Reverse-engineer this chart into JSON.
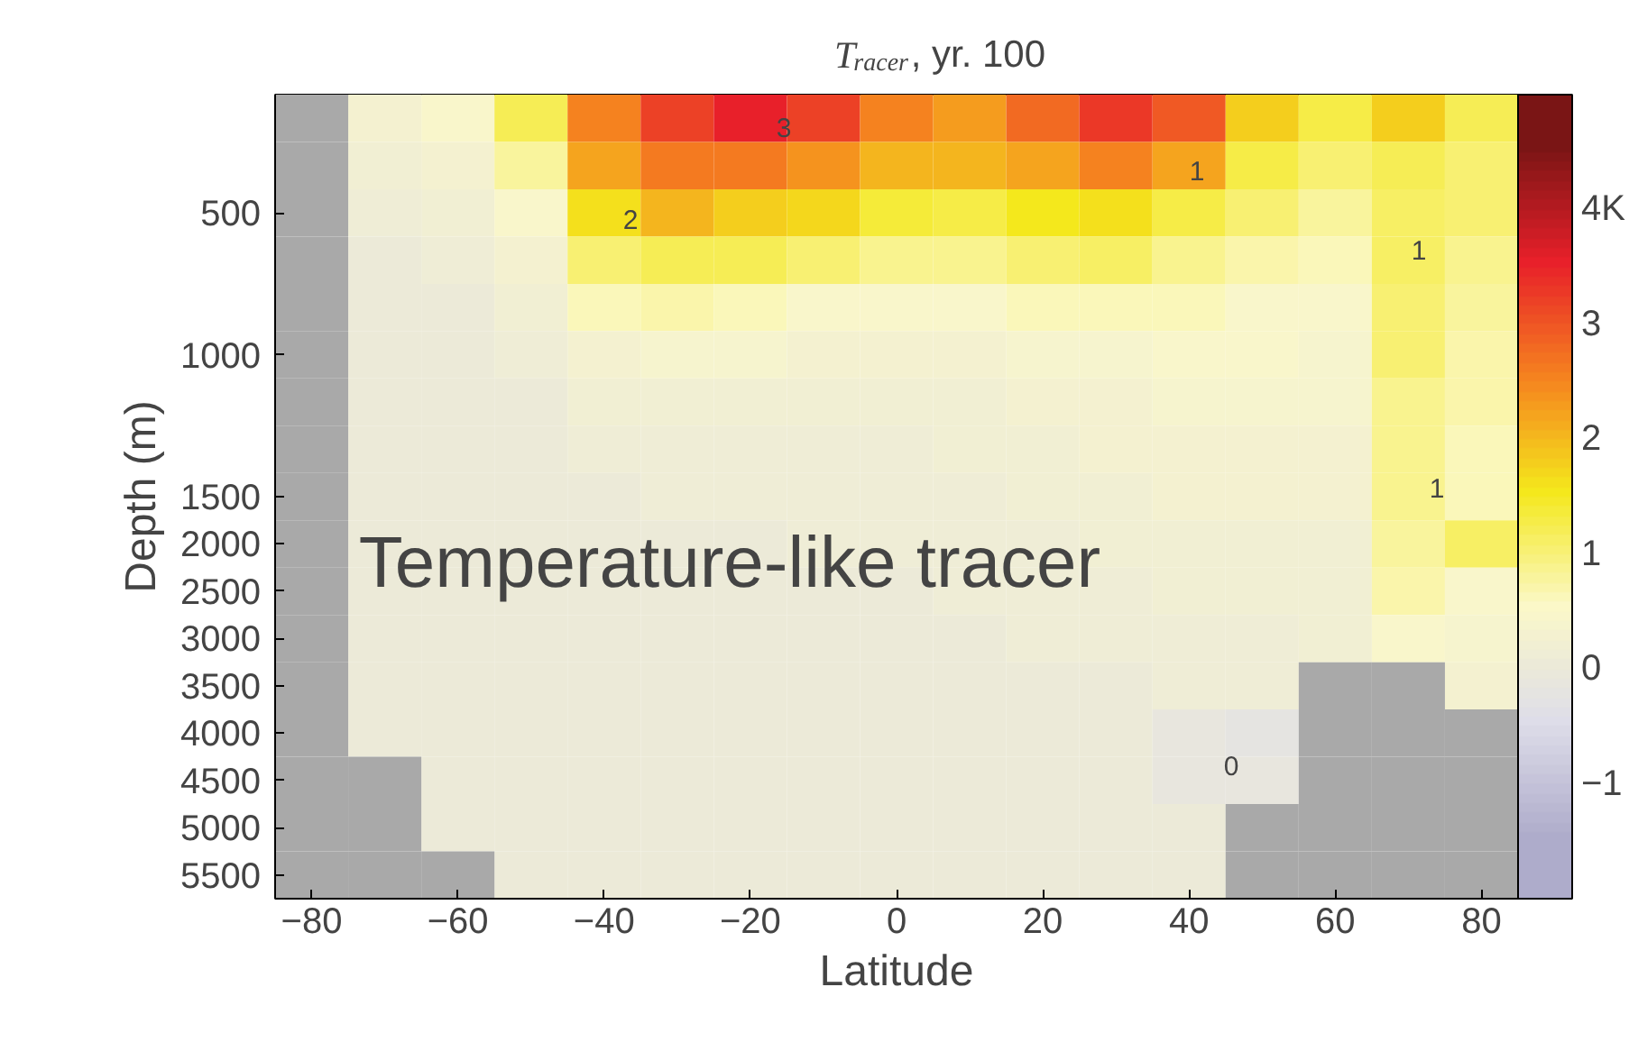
{
  "chart_data": {
    "type": "heatmap",
    "title": "T$_{racer}$, yr. 100",
    "xlabel": "Latitude",
    "ylabel": "Depth (m)",
    "categories": [
      "−80",
      null,
      "−60",
      null,
      "−40",
      null,
      "−20",
      null,
      "0",
      null,
      "20",
      null,
      "40",
      null,
      "60",
      null,
      "80"
    ],
    "y_categories": [
      null,
      null,
      "500",
      null,
      null,
      "1000",
      null,
      null,
      "1500",
      "2000",
      "2500",
      "3000",
      "3500",
      "4000",
      "4500",
      "5000",
      "5500"
    ],
    "cells": [
      [
        null,
        0.3,
        0.5,
        1.2,
        2.5,
        3.2,
        3.5,
        3.2,
        2.5,
        2.3,
        2.8,
        3.3,
        3.0,
        1.8,
        1.3,
        1.8,
        1.2
      ],
      [
        null,
        0.2,
        0.3,
        0.8,
        2.2,
        2.6,
        2.6,
        2.4,
        2.0,
        2.0,
        2.2,
        2.5,
        2.2,
        1.3,
        1.0,
        1.2,
        1.0
      ],
      [
        null,
        0.1,
        0.2,
        0.5,
        1.6,
        2.0,
        1.8,
        1.7,
        1.4,
        1.3,
        1.5,
        1.6,
        1.3,
        1.0,
        0.8,
        1.1,
        1.0
      ],
      [
        null,
        0,
        0.1,
        0.3,
        1.0,
        1.2,
        1.2,
        1.0,
        0.9,
        0.9,
        1.0,
        1.1,
        0.9,
        0.7,
        0.6,
        1.1,
        0.9
      ],
      [
        null,
        0,
        0,
        0.2,
        0.6,
        0.7,
        0.6,
        0.5,
        0.5,
        0.5,
        0.6,
        0.6,
        0.6,
        0.5,
        0.5,
        1.0,
        0.8
      ],
      [
        null,
        0,
        0,
        0.1,
        0.3,
        0.4,
        0.4,
        0.3,
        0.3,
        0.3,
        0.4,
        0.4,
        0.5,
        0.5,
        0.4,
        1.0,
        0.7
      ],
      [
        null,
        0,
        0,
        0,
        0.2,
        0.2,
        0.2,
        0.2,
        0.2,
        0.2,
        0.3,
        0.3,
        0.4,
        0.4,
        0.4,
        0.9,
        0.7
      ],
      [
        null,
        0,
        0,
        0,
        0.1,
        0.1,
        0.1,
        0.1,
        0.1,
        0.2,
        0.2,
        0.3,
        0.3,
        0.3,
        0.3,
        0.9,
        0.6
      ],
      [
        null,
        0,
        0,
        0,
        0,
        0.1,
        0.1,
        0.1,
        0.1,
        0.1,
        0.2,
        0.2,
        0.3,
        0.3,
        0.3,
        0.9,
        0.6
      ],
      [
        null,
        0,
        0,
        0,
        0,
        0,
        0,
        0.1,
        0.1,
        0.1,
        0.1,
        0.2,
        0.2,
        0.2,
        0.2,
        0.8,
        1.1
      ],
      [
        null,
        0,
        0,
        0,
        0,
        0,
        0,
        0,
        0,
        0.1,
        0.1,
        0.1,
        0.2,
        0.2,
        0.2,
        0.7,
        0.5
      ],
      [
        null,
        0,
        0,
        0,
        0,
        0,
        0,
        0,
        0,
        0,
        0.1,
        0.1,
        0.1,
        0.1,
        0.2,
        0.5,
        0.4
      ],
      [
        null,
        0,
        0,
        0,
        0,
        0,
        0,
        0,
        0,
        0,
        0,
        0,
        0.1,
        0.1,
        null,
        null,
        0.3
      ],
      [
        null,
        0,
        0,
        0,
        0,
        0,
        0,
        0,
        0,
        0,
        0,
        0,
        -0.1,
        -0.2,
        null,
        null,
        null
      ],
      [
        null,
        null,
        0,
        0,
        0,
        0,
        0,
        0,
        0,
        0,
        0,
        0,
        -0.1,
        -0.1,
        null,
        null,
        null
      ],
      [
        null,
        null,
        0,
        0,
        0,
        0,
        0,
        0,
        0,
        0,
        0,
        0,
        0,
        null,
        null,
        null,
        null
      ],
      [
        null,
        null,
        null,
        0,
        0,
        0,
        0,
        0,
        0,
        0,
        0,
        0,
        0,
        null,
        null,
        null,
        null
      ]
    ],
    "clim": [
      -2,
      5
    ],
    "cticks": [
      {
        "value": -1,
        "label": "−1"
      },
      0,
      1,
      2,
      3,
      {
        "value": 4,
        "label": "4K"
      }
    ],
    "colors": [
      "#aeaccb",
      "#dedde9",
      "#fbf8c8",
      "#f4e81c",
      "#f5821f",
      "#e8202a",
      "#7a1515"
    ],
    "annotations": [
      "3",
      "2",
      "1",
      "1",
      "1",
      "0",
      "Temperature-like tracer"
    ],
    "grid": false
  }
}
